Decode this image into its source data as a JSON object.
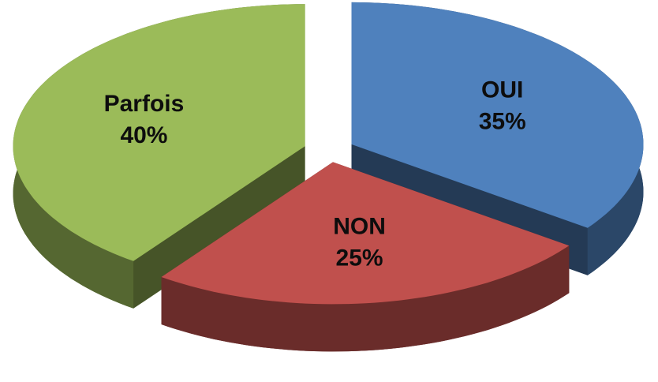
{
  "chart_data": {
    "type": "pie3d",
    "categories": [
      "OUI",
      "NON",
      "Parfois"
    ],
    "values": [
      35,
      25,
      40
    ],
    "value_labels": [
      "35%",
      "25%",
      "40%"
    ],
    "colors": [
      "#4f81bd",
      "#c0504d",
      "#9bbb59"
    ]
  }
}
